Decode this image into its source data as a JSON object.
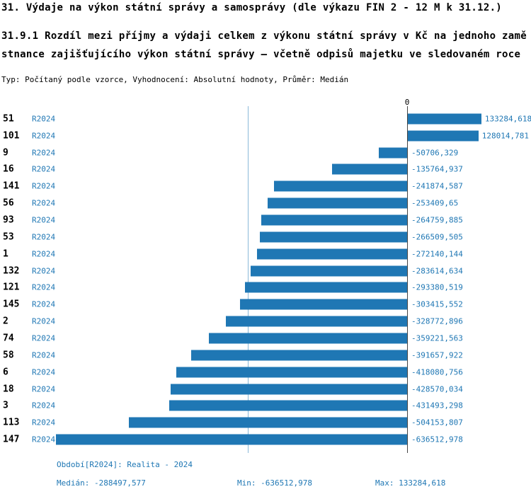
{
  "title": "31. Výdaje na výkon státní správy a samosprávy (dle výkazu FIN 2 - 12 M k 31.12.)",
  "subtitle": "31.9.1 Rozdíl mezi příjmy a výdaji celkem z výkonu státní správy v Kč na jednoho zaměstnance zajišťujícího výkon státní správy – včetně odpisů majetku ve sledovaném roce",
  "meta_line": "Typ: Počítaný podle vzorce, Vyhodnocení: Absolutní hodnoty, Průměr: Medián",
  "axis": {
    "zero_label": "0"
  },
  "footer": {
    "period": "Období[R2024]: Realita - 2024",
    "median": "Medián: -288497,577",
    "min": "Min: -636512,978",
    "max": "Max: 133284,618"
  },
  "colors": {
    "bar": "#1f77b4",
    "text_blue": "#1f77b4",
    "axis_line": "#444444",
    "median_line": "#8bb9d9"
  },
  "chart_data": {
    "type": "bar",
    "orientation": "horizontal",
    "title": "31.9.1 Rozdíl mezi příjmy a výdaji celkem z výkonu státní správy v Kč na jednoho zaměstnance zajišťujícího výkon státní správy – včetně odpisů majetku ve sledovaném roce",
    "series_label": "R2024",
    "xlim": [
      -636512.978,
      133284.618
    ],
    "median": -288497.577,
    "min": -636512.978,
    "max": 133284.618,
    "grid": false,
    "rows": [
      {
        "id": "51",
        "period": "R2024",
        "value": 133284.618,
        "label": "133284,618"
      },
      {
        "id": "101",
        "period": "R2024",
        "value": 128014.781,
        "label": "128014,781"
      },
      {
        "id": "9",
        "period": "R2024",
        "value": -50706.329,
        "label": "-50706,329"
      },
      {
        "id": "16",
        "period": "R2024",
        "value": -135764.937,
        "label": "-135764,937"
      },
      {
        "id": "141",
        "period": "R2024",
        "value": -241874.587,
        "label": "-241874,587"
      },
      {
        "id": "56",
        "period": "R2024",
        "value": -253409.65,
        "label": "-253409,65"
      },
      {
        "id": "93",
        "period": "R2024",
        "value": -264759.885,
        "label": "-264759,885"
      },
      {
        "id": "53",
        "period": "R2024",
        "value": -266509.505,
        "label": "-266509,505"
      },
      {
        "id": "1",
        "period": "R2024",
        "value": -272140.144,
        "label": "-272140,144"
      },
      {
        "id": "132",
        "period": "R2024",
        "value": -283614.634,
        "label": "-283614,634"
      },
      {
        "id": "121",
        "period": "R2024",
        "value": -293380.519,
        "label": "-293380,519"
      },
      {
        "id": "145",
        "period": "R2024",
        "value": -303415.552,
        "label": "-303415,552"
      },
      {
        "id": "2",
        "period": "R2024",
        "value": -328772.896,
        "label": "-328772,896"
      },
      {
        "id": "74",
        "period": "R2024",
        "value": -359221.563,
        "label": "-359221,563"
      },
      {
        "id": "58",
        "period": "R2024",
        "value": -391657.922,
        "label": "-391657,922"
      },
      {
        "id": "6",
        "period": "R2024",
        "value": -418080.756,
        "label": "-418080,756"
      },
      {
        "id": "18",
        "period": "R2024",
        "value": -428570.034,
        "label": "-428570,034"
      },
      {
        "id": "3",
        "period": "R2024",
        "value": -431493.298,
        "label": "-431493,298"
      },
      {
        "id": "113",
        "period": "R2024",
        "value": -504153.807,
        "label": "-504153,807"
      },
      {
        "id": "147",
        "period": "R2024",
        "value": -636512.978,
        "label": "-636512,978"
      }
    ]
  }
}
